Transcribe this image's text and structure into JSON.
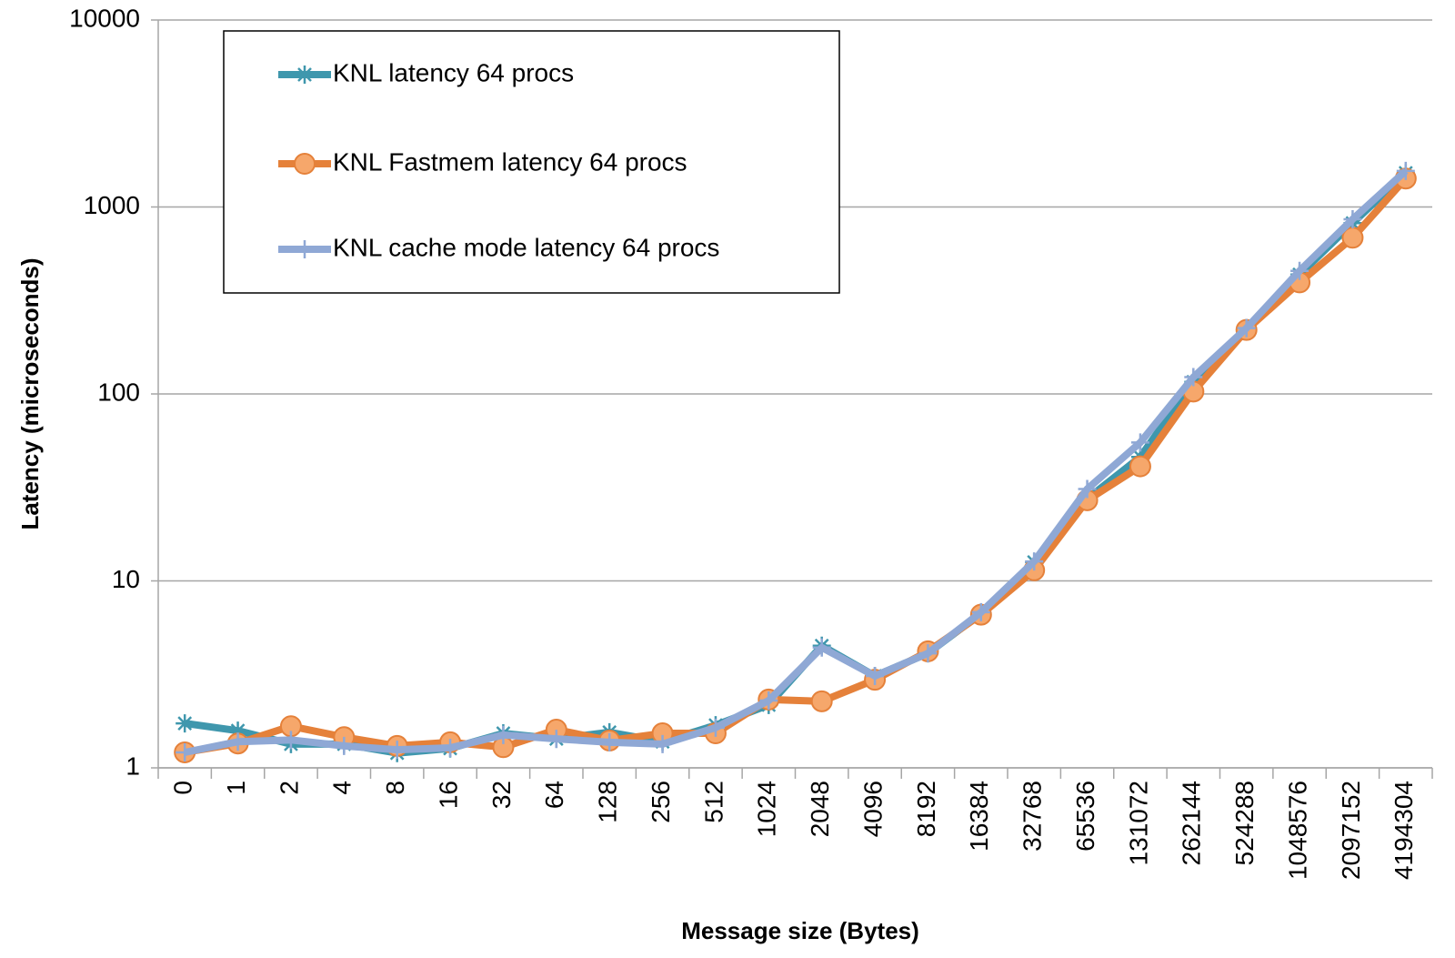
{
  "chart_data": {
    "type": "line",
    "x_label": "Message size (Bytes)",
    "y_label": "Latency (microseconds)",
    "categories": [
      "0",
      "1",
      "2",
      "4",
      "8",
      "16",
      "32",
      "64",
      "128",
      "256",
      "512",
      "1024",
      "2048",
      "4096",
      "8192",
      "16384",
      "32768",
      "65536",
      "131072",
      "262144",
      "524288",
      "1048576",
      "2097152",
      "4194304"
    ],
    "series": [
      {
        "name": "KNL latency 64 procs",
        "color": "#3f97ad",
        "marker": "star",
        "values": [
          1.73,
          1.58,
          1.34,
          1.34,
          1.2,
          1.27,
          1.53,
          1.43,
          1.55,
          1.38,
          1.69,
          2.17,
          4.5,
          3.1,
          4.1,
          6.7,
          12.6,
          27.5,
          46,
          116,
          225,
          435,
          820,
          1520
        ]
      },
      {
        "name": "KNL Fastmem latency 64 procs",
        "color": "#e5813a",
        "marker": "circle",
        "values": [
          1.21,
          1.35,
          1.67,
          1.46,
          1.31,
          1.37,
          1.29,
          1.6,
          1.4,
          1.53,
          1.53,
          2.32,
          2.27,
          2.96,
          4.2,
          6.6,
          11.4,
          27,
          41,
          103,
          220,
          395,
          685,
          1420
        ]
      },
      {
        "name": "KNL cache mode latency 64 procs",
        "color": "#8fa8d5",
        "marker": "plus",
        "values": [
          1.21,
          1.38,
          1.41,
          1.31,
          1.25,
          1.28,
          1.5,
          1.43,
          1.37,
          1.34,
          1.64,
          2.29,
          4.4,
          3.1,
          4.1,
          6.8,
          12.7,
          31,
          55,
          123,
          225,
          455,
          860,
          1560
        ]
      }
    ],
    "ylim": [
      1,
      10000
    ],
    "yticks": [
      1,
      10,
      100,
      1000,
      10000
    ],
    "log_scale": true,
    "grid": true,
    "legend_position": "upper left"
  }
}
